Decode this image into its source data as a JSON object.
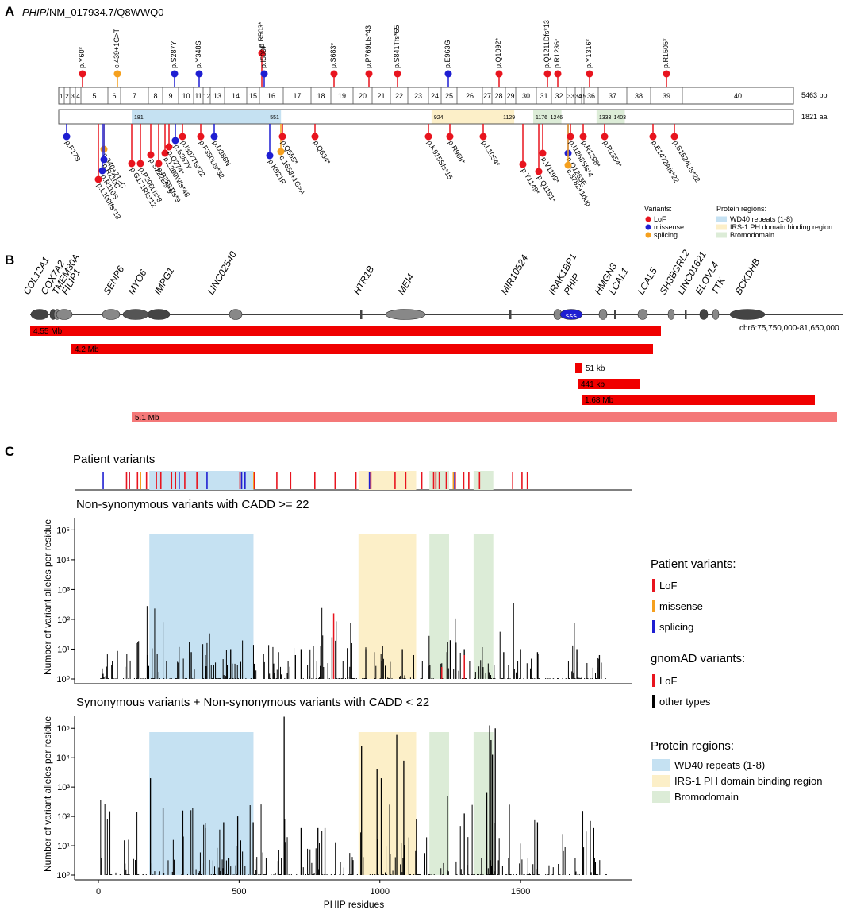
{
  "panelA": {
    "panel_label": "A",
    "gene": "PHIP",
    "transcript": "NM_017934.7",
    "protein_id": "Q8WWQ0",
    "exon_length": "5463 bp",
    "protein_length": "1821 aa",
    "exons": [
      "1",
      "2",
      "3",
      "4",
      "5",
      "6",
      "7",
      "8",
      "9",
      "10",
      "11",
      "12",
      "13",
      "14",
      "15",
      "16",
      "17",
      "18",
      "19",
      "20",
      "21",
      "22",
      "23",
      "24",
      "25",
      "26",
      "27",
      "28",
      "29",
      "30",
      "31",
      "32",
      "33",
      "34",
      "35",
      "36",
      "37",
      "38",
      "39",
      "40"
    ],
    "region_numbers": [
      "181",
      "551",
      "924",
      "1129",
      "1176",
      "1246",
      "1333",
      "1403"
    ],
    "top_variants": [
      {
        "label": "p.Y60*",
        "type": "LoF"
      },
      {
        "label": "c.439+1G>T",
        "type": "splicing"
      },
      {
        "label": "p.S287Y",
        "type": "missense"
      },
      {
        "label": "p.Y348S",
        "type": "missense"
      },
      {
        "label": "p.R503*",
        "type": "LoF"
      },
      {
        "label": "p.I509F",
        "type": "missense"
      },
      {
        "label": "p.S683*",
        "type": "LoF"
      },
      {
        "label": "p.P769Lfs*43",
        "type": "LoF"
      },
      {
        "label": "p.S841Tfs*65",
        "type": "LoF"
      },
      {
        "label": "p.E963G",
        "type": "missense"
      },
      {
        "label": "p.Q1092*",
        "type": "LoF"
      },
      {
        "label": "p.Q1211Dfs*13",
        "type": "LoF"
      },
      {
        "label": "p.R1236*",
        "type": "LoF"
      },
      {
        "label": "p.Y1316*",
        "type": "LoF"
      },
      {
        "label": "p.R1505*",
        "type": "LoF"
      }
    ],
    "bottom_variants": [
      {
        "label": "p.F17S",
        "type": "missense"
      },
      {
        "label": "c.340+2T>C",
        "type": "splicing"
      },
      {
        "label": "p.R110C",
        "type": "missense"
      },
      {
        "label": "p.R110S",
        "type": "missense"
      },
      {
        "label": "p.L100Ifs*13",
        "type": "LoF"
      },
      {
        "label": "p.G171Rfs*12",
        "type": "LoF"
      },
      {
        "label": "p.P206Lfs*8",
        "type": "LoF"
      },
      {
        "label": "p.S222Lfs*9",
        "type": "LoF"
      },
      {
        "label": "p.P259Tfs*9",
        "type": "LoF"
      },
      {
        "label": "p.L260Wfs*48",
        "type": "LoF"
      },
      {
        "label": "p.Q274*",
        "type": "LoF"
      },
      {
        "label": "p.S287Y",
        "type": "missense"
      },
      {
        "label": "p.I307Tfs*22",
        "type": "LoF"
      },
      {
        "label": "p.F350Lfs*32",
        "type": "LoF"
      },
      {
        "label": "p.D386N",
        "type": "missense"
      },
      {
        "label": "p.K521R",
        "type": "missense"
      },
      {
        "label": "c.1653+1G>A",
        "type": "splicing"
      },
      {
        "label": "p.Q555*",
        "type": "LoF"
      },
      {
        "label": "p.Q634*",
        "type": "LoF"
      },
      {
        "label": "p.K915Sfs*15",
        "type": "LoF"
      },
      {
        "label": "p.R968*",
        "type": "LoF"
      },
      {
        "label": "p.L1054*",
        "type": "LoF"
      },
      {
        "label": "p.Y1149*",
        "type": "LoF"
      },
      {
        "label": "p.V1199*",
        "type": "LoF"
      },
      {
        "label": "p.Q1191*",
        "type": "LoF"
      },
      {
        "label": "p.Q1263E",
        "type": "missense"
      },
      {
        "label": "c.3782+1dup",
        "type": "splicing"
      },
      {
        "label": "p.I1268Sfs*4",
        "type": "LoF"
      },
      {
        "label": "p.R1298*",
        "type": "LoF"
      },
      {
        "label": "p.R1354*",
        "type": "LoF"
      },
      {
        "label": "p.E1472Afs*22",
        "type": "LoF"
      },
      {
        "label": "p.S1524Lfs*22",
        "type": "LoF"
      }
    ],
    "legend_variants_title": "Variants:",
    "legend_variants": [
      {
        "label": "LoF",
        "color": "#e8141e"
      },
      {
        "label": "missense",
        "color": "#1e1ed2"
      },
      {
        "label": "splicing",
        "color": "#f5a01e"
      }
    ],
    "legend_regions_title": "Protein regions:",
    "legend_regions": [
      {
        "label": "WD40 repeats (1-8)",
        "color": "#c5e1f2"
      },
      {
        "label": "IRS-1 PH domain binding region",
        "color": "#fcefc8"
      },
      {
        "label": "Bromodomain",
        "color": "#dcecd7"
      }
    ]
  },
  "panelB": {
    "panel_label": "B",
    "genes": [
      "COL12A1",
      "COX7A2",
      "TMEM30A",
      "FILIP1",
      "SENP6",
      "MYO6",
      "IMPG1",
      "LINC02540",
      "HTR1B",
      "MEI4",
      "MIR10524",
      "IRAK1BP1",
      "PHIP",
      "HMGN3",
      "LCAL1",
      "LCAL5",
      "SH3BGRL2",
      "LINC01621",
      "ELOVL4",
      "TTK",
      "BCKDHB"
    ],
    "region": "chr6:75,750,000-81,650,000",
    "phip_arrows": "<<<",
    "deletions": [
      {
        "label": "4.55 Mb",
        "color": "#f00000"
      },
      {
        "label": "4.2 Mb",
        "color": "#f00000"
      },
      {
        "label": "51 kb",
        "color": "#f00000"
      },
      {
        "label": "441 kb",
        "color": "#f00000"
      },
      {
        "label": "1.68 Mb",
        "color": "#f00000"
      },
      {
        "label": "5.1 Mb",
        "color": "#f47878"
      }
    ]
  },
  "panelC": {
    "panel_label": "C",
    "track_title": "Patient variants",
    "plot1_title": "Non-synonymous variants with CADD >= 22",
    "plot2_title": "Synonymous variants + Non-synonymous variants with CADD < 22",
    "ylabel": "Number of variant alleles per residue",
    "xlabel": "PHIP residues",
    "y_ticks": [
      "10⁰",
      "10¹",
      "10²",
      "10³",
      "10⁴",
      "10⁵"
    ],
    "x_ticks": [
      "0",
      "500",
      "1000",
      "1500"
    ],
    "legend_patient_title": "Patient variants:",
    "legend_patient": [
      {
        "label": "LoF",
        "color": "#e8141e"
      },
      {
        "label": "missense",
        "color": "#f5a01e"
      },
      {
        "label": "splicing",
        "color": "#1e1ed2"
      }
    ],
    "legend_gnomad_title": "gnomAD variants:",
    "legend_gnomad": [
      {
        "label": "LoF",
        "color": "#e8141e"
      },
      {
        "label": "other types",
        "color": "#000000"
      }
    ],
    "legend_regions_title": "Protein regions:",
    "legend_regions": [
      {
        "label": "WD40 repeats (1-8)",
        "color": "#c5e1f2"
      },
      {
        "label": "IRS-1 PH domain binding region",
        "color": "#fcefc8"
      },
      {
        "label": "Bromodomain",
        "color": "#dcecd7"
      }
    ]
  }
}
